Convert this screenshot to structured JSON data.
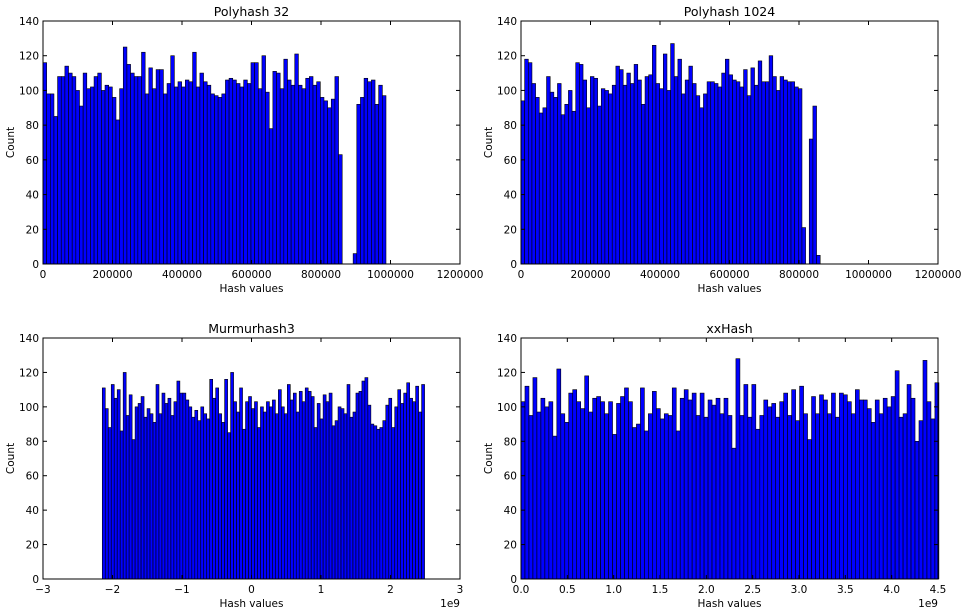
{
  "chart_data": [
    {
      "type": "bar",
      "title": "Polyhash 32",
      "xlabel": "Hash values",
      "ylabel": "Count",
      "xlim": [
        0,
        1200000
      ],
      "ylim": [
        0,
        140
      ],
      "xticks": [
        0,
        200000,
        400000,
        600000,
        800000,
        1000000,
        1200000
      ],
      "xtick_labels": [
        "0",
        "200000",
        "400000",
        "600000",
        "800000",
        "1000000",
        "1200000"
      ],
      "yticks": [
        0,
        20,
        40,
        60,
        80,
        100,
        120,
        140
      ],
      "offset_label": "",
      "x_start": 0,
      "bin_width": 10500,
      "values": [
        116,
        98,
        98,
        85,
        108,
        108,
        114,
        110,
        108,
        100,
        91,
        110,
        101,
        102,
        108,
        110,
        100,
        103,
        102,
        96,
        83,
        101,
        125,
        115,
        110,
        108,
        108,
        122,
        98,
        113,
        101,
        112,
        112,
        98,
        104,
        120,
        102,
        105,
        102,
        106,
        105,
        122,
        102,
        110,
        105,
        103,
        98,
        97,
        96,
        98,
        106,
        107,
        106,
        104,
        102,
        106,
        104,
        116,
        116,
        101,
        120,
        99,
        78,
        111,
        110,
        101,
        118,
        106,
        103,
        121,
        103,
        101,
        107,
        108,
        103,
        105,
        96,
        94,
        90,
        95,
        108,
        63,
        0,
        0,
        0,
        6,
        92,
        96,
        107,
        105,
        106,
        92,
        103,
        97
      ],
      "grid": false,
      "legend": "none"
    },
    {
      "type": "bar",
      "title": "Polyhash 1024",
      "xlabel": "Hash values",
      "ylabel": "Count",
      "xlim": [
        0,
        1200000
      ],
      "ylim": [
        0,
        140
      ],
      "xticks": [
        0,
        200000,
        400000,
        600000,
        800000,
        1000000,
        1200000
      ],
      "xtick_labels": [
        "0",
        "200000",
        "400000",
        "600000",
        "800000",
        "1000000",
        "1200000"
      ],
      "yticks": [
        0,
        20,
        40,
        60,
        80,
        100,
        120,
        140
      ],
      "offset_label": "",
      "x_start": 0,
      "bin_width": 10500,
      "values": [
        94,
        118,
        116,
        104,
        96,
        87,
        90,
        108,
        99,
        96,
        104,
        86,
        92,
        100,
        88,
        116,
        115,
        106,
        90,
        108,
        107,
        91,
        101,
        100,
        98,
        103,
        114,
        112,
        103,
        110,
        104,
        115,
        106,
        92,
        108,
        109,
        126,
        104,
        101,
        121,
        100,
        127,
        108,
        118,
        98,
        106,
        114,
        104,
        97,
        90,
        98,
        105,
        105,
        104,
        102,
        110,
        118,
        109,
        106,
        105,
        102,
        112,
        97,
        113,
        103,
        117,
        105,
        105,
        120,
        108,
        100,
        108,
        106,
        105,
        105,
        102,
        101,
        21,
        0,
        72,
        91,
        5,
        0,
        0,
        0,
        0,
        0,
        0,
        0,
        0,
        0,
        0,
        0,
        0
      ],
      "grid": false,
      "legend": "none"
    },
    {
      "type": "bar",
      "title": "Murmurhash3",
      "xlabel": "Hash values",
      "ylabel": "Count",
      "xlim": [
        -3,
        3
      ],
      "ylim": [
        0,
        140
      ],
      "xticks": [
        -3,
        -2,
        -1,
        0,
        1,
        2,
        3
      ],
      "xtick_labels": [
        "−3",
        "−2",
        "−1",
        "0",
        "1",
        "2",
        "3"
      ],
      "yticks": [
        0,
        20,
        40,
        60,
        80,
        100,
        120,
        140
      ],
      "offset_label": "1e9",
      "x_start": -2.147,
      "bin_width": 0.04294,
      "values": [
        111,
        99,
        88,
        113,
        105,
        110,
        86,
        120,
        95,
        107,
        81,
        100,
        102,
        106,
        94,
        99,
        96,
        91,
        113,
        96,
        108,
        102,
        105,
        95,
        103,
        115,
        108,
        108,
        104,
        100,
        94,
        98,
        92,
        100,
        96,
        93,
        116,
        105,
        111,
        96,
        91,
        116,
        85,
        120,
        103,
        97,
        111,
        87,
        103,
        106,
        99,
        103,
        88,
        100,
        97,
        103,
        100,
        104,
        96,
        110,
        100,
        96,
        113,
        104,
        108,
        97,
        109,
        103,
        111,
        109,
        106,
        88,
        102,
        93,
        107,
        103,
        108,
        89,
        92,
        100,
        99,
        96,
        113,
        94,
        97,
        108,
        109,
        115,
        117,
        101,
        90,
        89,
        87,
        88,
        92,
        101,
        105,
        88,
        100,
        110,
        102,
        108,
        114,
        105,
        103,
        112,
        97,
        113
      ],
      "grid": false,
      "legend": "none"
    },
    {
      "type": "bar",
      "title": "xxHash",
      "xlabel": "Hash values",
      "ylabel": "Count",
      "xlim": [
        0,
        4.5
      ],
      "ylim": [
        0,
        140
      ],
      "xticks": [
        0,
        0.5,
        1.0,
        1.5,
        2.0,
        2.5,
        3.0,
        3.5,
        4.0,
        4.5
      ],
      "xtick_labels": [
        "0.0",
        "0.5",
        "1.0",
        "1.5",
        "2.0",
        "2.5",
        "3.0",
        "3.5",
        "4.0",
        "4.5"
      ],
      "yticks": [
        0,
        20,
        40,
        60,
        80,
        100,
        120,
        140
      ],
      "offset_label": "1e9",
      "x_start": 0,
      "bin_width": 0.04295,
      "values": [
        103,
        112,
        95,
        117,
        97,
        105,
        100,
        103,
        83,
        122,
        96,
        91,
        108,
        110,
        103,
        99,
        118,
        97,
        105,
        106,
        103,
        96,
        103,
        84,
        102,
        106,
        111,
        103,
        88,
        90,
        111,
        86,
        96,
        109,
        99,
        93,
        96,
        95,
        111,
        86,
        105,
        110,
        104,
        108,
        95,
        108,
        94,
        104,
        101,
        105,
        96,
        105,
        95,
        76,
        128,
        95,
        113,
        94,
        113,
        87,
        95,
        104,
        100,
        102,
        94,
        103,
        108,
        95,
        110,
        92,
        112,
        96,
        81,
        106,
        96,
        107,
        104,
        96,
        108,
        94,
        108,
        107,
        103,
        96,
        110,
        104,
        104,
        99,
        91,
        104,
        96,
        105,
        100,
        106,
        121,
        94,
        96,
        113,
        105,
        80,
        92,
        127,
        103,
        93,
        114
      ],
      "grid": false,
      "legend": "none"
    }
  ]
}
